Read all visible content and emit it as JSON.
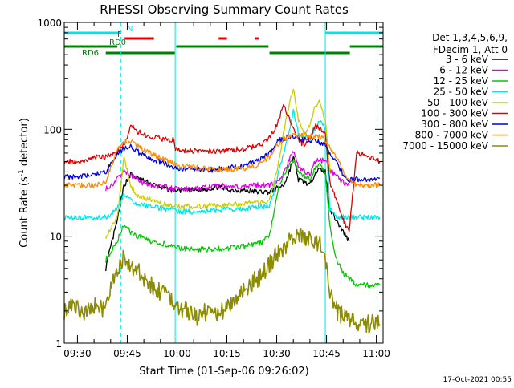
{
  "chart_data": {
    "type": "line",
    "title": "RHESSI Observing Summary Count Rates",
    "xlabel": "Start Time (01-Sep-06 09:26:02)",
    "ylabel_main": "Count Rate (s",
    "ylabel_sup": "-1",
    "ylabel_tail": " detector",
    "ylabel_end": ")",
    "ylog": true,
    "ylim": [
      1,
      1000
    ],
    "xlim_minutes": [
      0,
      96
    ],
    "x_ticks": [
      {
        "label": "09:30",
        "min": 3.97
      },
      {
        "label": "09:45",
        "min": 18.97
      },
      {
        "label": "10:00",
        "min": 33.97
      },
      {
        "label": "10:15",
        "min": 48.97
      },
      {
        "label": "10:30",
        "min": 63.97
      },
      {
        "label": "10:45",
        "min": 78.97
      },
      {
        "label": "11:00",
        "min": 93.97
      }
    ],
    "y_ticks": [
      {
        "label": "1",
        "value": 1
      },
      {
        "label": "10",
        "value": 10
      },
      {
        "label": "100",
        "value": 100
      },
      {
        "label": "1000",
        "value": 1000
      }
    ],
    "legend_header": [
      "Det 1,3,4,5,6,9,",
      "FDecim 1, Att 0"
    ],
    "legend_position": "right",
    "vlines_solid": [
      33.4,
      78.6
    ],
    "vlines_dashed": [
      17.0,
      94.2
    ],
    "flag_bars": [
      {
        "label": "N",
        "color": "#00e5e5",
        "segments": [
          [
            0,
            17
          ],
          [
            78.6,
            96
          ]
        ]
      },
      {
        "label": "F",
        "color": "#e00000",
        "segments": [
          [
            18.2,
            27
          ],
          [
            46.5,
            49
          ],
          [
            57.3,
            58.5
          ]
        ]
      },
      {
        "label": "RD0",
        "color": "#008000",
        "segments": [
          [
            0,
            16
          ],
          [
            33.7,
            61.5
          ],
          [
            86,
            96
          ]
        ]
      },
      {
        "label": "RD6",
        "color": "#008000",
        "segments": [
          [
            12.5,
            33.3
          ],
          [
            61.8,
            86
          ]
        ]
      }
    ],
    "series": [
      {
        "name": "3 - 6 keV",
        "color": "#000000",
        "x": [
          12.5,
          14,
          16,
          18,
          20,
          22,
          26,
          30,
          33,
          40,
          44,
          46,
          50,
          54,
          58,
          60,
          61.8,
          64,
          66,
          67.5,
          69,
          70.5,
          72.5,
          74,
          75.5,
          77,
          78.6,
          80,
          82,
          84,
          85.8
        ],
        "y": [
          5,
          8,
          14,
          30,
          38,
          35,
          31,
          28,
          27,
          27,
          28,
          29,
          27,
          27,
          26,
          26,
          26,
          28,
          30,
          38,
          55,
          34,
          32,
          30,
          40,
          42,
          40,
          18,
          14,
          11,
          9
        ]
      },
      {
        "name": "6 - 12 keV",
        "color": "#e000e0",
        "x": [
          12.5,
          14,
          16,
          18,
          20,
          22,
          26,
          30,
          33,
          40,
          44,
          46,
          50,
          54,
          58,
          60,
          61.8,
          64,
          66,
          67.5,
          69,
          70.5,
          72.5,
          74,
          75.5,
          77,
          78.6,
          80,
          82,
          84,
          85.8
        ],
        "y": [
          28,
          30,
          34,
          40,
          38,
          33,
          30,
          29,
          28,
          28,
          29,
          30,
          29,
          29,
          30,
          30,
          30,
          32,
          38,
          50,
          62,
          44,
          40,
          38,
          50,
          52,
          50,
          42,
          36,
          32,
          30
        ]
      },
      {
        "name": "12 - 25 keV",
        "color": "#00c800",
        "x": [
          12.5,
          14,
          16,
          18,
          20,
          22,
          26,
          30,
          33,
          33.5,
          40,
          46,
          50,
          54,
          58,
          60,
          61.8,
          63,
          64.5,
          66,
          67.5,
          69,
          70.5,
          72.5,
          74,
          75.5,
          77,
          78.6,
          80,
          82,
          84,
          85.8,
          88,
          92,
          95
        ],
        "y": [
          6,
          7,
          9,
          13,
          11,
          10,
          9,
          8.5,
          8,
          7.8,
          7.5,
          7.6,
          7.8,
          8,
          8.5,
          9,
          10,
          16,
          28,
          38,
          45,
          52,
          40,
          36,
          34,
          44,
          46,
          40,
          12,
          6,
          4.5,
          4,
          3.5,
          3.5,
          3.5
        ]
      },
      {
        "name": "25 - 50 keV",
        "color": "#00e5e5",
        "x": [
          0,
          5,
          10,
          12.5,
          14,
          16,
          18,
          20,
          22,
          26,
          30,
          33,
          33.5,
          40,
          46,
          50,
          54,
          58,
          60,
          61.8,
          63,
          64.5,
          66,
          67.5,
          69,
          70.5,
          72.5,
          74,
          75.5,
          77,
          78.6,
          80,
          82,
          84,
          85.8,
          88,
          92,
          95
        ],
        "y": [
          15,
          15,
          15,
          15,
          16,
          18,
          25,
          22,
          20,
          19,
          18,
          18,
          17,
          17,
          17.5,
          18,
          18,
          19,
          19,
          19,
          25,
          40,
          60,
          90,
          150,
          90,
          85,
          80,
          100,
          120,
          100,
          18,
          15,
          15,
          15,
          15,
          15,
          15
        ]
      },
      {
        "name": "50 - 100 keV",
        "color": "#cccc00",
        "x": [
          12.5,
          14,
          16,
          18,
          20,
          22,
          26,
          30,
          33,
          33.5,
          40,
          46,
          50,
          54,
          58,
          60,
          61.8,
          63,
          64.5,
          66,
          67.5,
          69,
          70.5,
          72.5,
          74,
          75.5,
          77,
          78.6,
          80
        ],
        "y": [
          10,
          12,
          15,
          55,
          30,
          24,
          22,
          20,
          19,
          19,
          19,
          19.5,
          20,
          20,
          21,
          21,
          22,
          30,
          48,
          90,
          160,
          240,
          120,
          90,
          110,
          170,
          180,
          120,
          40
        ]
      },
      {
        "name": "100 - 300 keV",
        "color": "#e00000",
        "x": [
          0,
          5,
          10,
          12.5,
          14,
          16,
          18,
          20,
          22,
          26,
          30,
          33,
          33.5,
          40,
          46,
          50,
          54,
          58,
          60,
          61.8,
          63,
          64.5,
          66,
          67.5,
          69,
          70.5,
          72,
          74,
          75.5,
          77,
          78.6,
          80,
          82,
          84,
          85.8,
          88,
          92,
          95
        ],
        "y": [
          50,
          50,
          55,
          55,
          58,
          62,
          70,
          110,
          95,
          85,
          80,
          80,
          65,
          62,
          62,
          64,
          66,
          70,
          75,
          85,
          95,
          120,
          170,
          130,
          100,
          80,
          72,
          80,
          110,
          100,
          90,
          32,
          22,
          14,
          11,
          60,
          55,
          50
        ]
      },
      {
        "name": "300 - 800 keV",
        "color": "#0000e0",
        "x": [
          0,
          5,
          10,
          12.5,
          14,
          16,
          18,
          20,
          22,
          26,
          30,
          33,
          33.5,
          40,
          46,
          50,
          54,
          58,
          60,
          61.8,
          63,
          64.5,
          66,
          67.5,
          69,
          70.5,
          72,
          74,
          75.5,
          77,
          78.6,
          80,
          82,
          84,
          85.8,
          88,
          92,
          95
        ],
        "y": [
          36,
          36,
          38,
          40,
          48,
          58,
          66,
          70,
          62,
          54,
          48,
          44,
          43,
          42,
          42,
          44,
          46,
          50,
          55,
          60,
          68,
          78,
          82,
          84,
          84,
          82,
          80,
          78,
          78,
          76,
          72,
          60,
          48,
          38,
          34,
          34,
          34,
          35
        ]
      },
      {
        "name": "800 - 7000 keV",
        "color": "#ff8c00",
        "x": [
          0,
          5,
          10,
          12.5,
          14,
          16,
          18,
          20,
          22,
          26,
          30,
          33,
          33.5,
          40,
          46,
          50,
          54,
          58,
          60,
          61.8,
          63,
          64.5,
          66,
          67.5,
          69,
          70.5,
          72,
          74,
          75.5,
          77,
          78.6,
          80,
          82,
          84,
          85.8,
          88,
          92,
          95
        ],
        "y": [
          30,
          30,
          30,
          32,
          44,
          64,
          74,
          78,
          70,
          60,
          52,
          48,
          46,
          44,
          42,
          42,
          43,
          46,
          50,
          56,
          64,
          72,
          80,
          85,
          87,
          88,
          88,
          86,
          86,
          85,
          80,
          68,
          55,
          40,
          34,
          30,
          30,
          30
        ]
      },
      {
        "name": "7000 - 15000 keV",
        "color": "#8c8c00",
        "x": [
          0,
          3,
          6,
          9,
          12,
          13.5,
          15,
          16.5,
          18,
          19.5,
          21,
          22.5,
          24,
          26,
          28,
          30,
          33,
          36,
          40,
          44,
          46,
          48,
          50,
          52,
          54,
          56,
          58,
          60,
          62,
          64,
          66,
          68,
          70,
          72,
          74,
          76,
          78,
          79,
          80,
          82,
          84,
          86,
          88,
          90,
          92,
          95
        ],
        "y": [
          2,
          2.3,
          2,
          2.2,
          2,
          3,
          4,
          5,
          6.5,
          5.5,
          5,
          4.5,
          4,
          3.5,
          3.2,
          2.8,
          2.5,
          2,
          1.8,
          2,
          2,
          2,
          2.2,
          2.5,
          3,
          3.5,
          4,
          4.5,
          5.5,
          7,
          8,
          9,
          11,
          10,
          9,
          8.5,
          8,
          5,
          3,
          2,
          1.8,
          1.6,
          1.5,
          1.5,
          1.5,
          1.5
        ]
      }
    ]
  },
  "footer_date": "17-Oct-2021 00:55"
}
